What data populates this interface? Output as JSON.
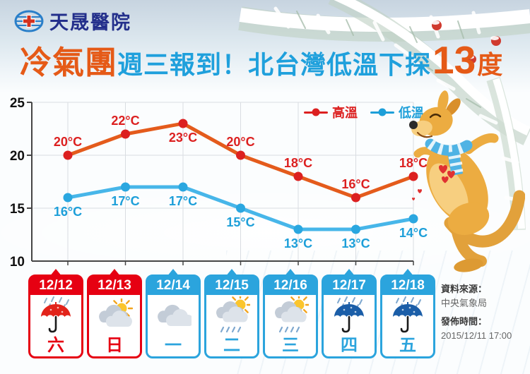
{
  "logo": {
    "name": "天晟醫院",
    "icon": "globe-cross-logo",
    "color": "#232F8B"
  },
  "headline": {
    "part1": "冷氣團",
    "part2": "週三報到！北台灣低溫下探",
    "big_number": "13",
    "part3": "度",
    "accent_color": "#E55A17",
    "blue_color": "#1FA0DC"
  },
  "legend": [
    {
      "label": "高溫",
      "color": "#DC2020"
    },
    {
      "label": "低溫",
      "color": "#1D9FD9"
    }
  ],
  "chart_data": {
    "type": "line",
    "categories": [
      "12/12",
      "12/13",
      "12/14",
      "12/15",
      "12/16",
      "12/17",
      "12/18"
    ],
    "series": [
      {
        "name": "高溫",
        "values": [
          20,
          22,
          23,
          20,
          18,
          16,
          18
        ],
        "line_color": "#E45B1C",
        "point_color": "#DC2020",
        "label_color": "#DC2020",
        "label_pos": [
          "above",
          "above",
          "below",
          "above",
          "above",
          "above",
          "above"
        ]
      },
      {
        "name": "低溫",
        "values": [
          16,
          17,
          17,
          15,
          13,
          13,
          14
        ],
        "line_color": "#47B6E9",
        "point_color": "#2AA7E0",
        "label_color": "#1D9FD9",
        "label_pos": [
          "below",
          "below",
          "below",
          "below",
          "below",
          "below",
          "below"
        ]
      }
    ],
    "unit": "°C",
    "ylim": [
      10,
      25
    ],
    "yticks": [
      10,
      15,
      20,
      25
    ],
    "grid": true,
    "legend_position": "top-right",
    "xlabel": "",
    "ylabel": ""
  },
  "days": [
    {
      "date": "12/12",
      "weekday": "六",
      "theme": "red",
      "icon": "umbrella-rain-red"
    },
    {
      "date": "12/13",
      "weekday": "日",
      "theme": "red",
      "icon": "sun-clouds"
    },
    {
      "date": "12/14",
      "weekday": "一",
      "theme": "blue",
      "icon": "cloudy"
    },
    {
      "date": "12/15",
      "weekday": "二",
      "theme": "blue",
      "icon": "sun-clouds-rain"
    },
    {
      "date": "12/16",
      "weekday": "三",
      "theme": "blue",
      "icon": "sun-clouds-rain"
    },
    {
      "date": "12/17",
      "weekday": "四",
      "theme": "blue",
      "icon": "umbrella-rain-blue"
    },
    {
      "date": "12/18",
      "weekday": "五",
      "theme": "blue",
      "icon": "umbrella-rain-blue"
    }
  ],
  "source": {
    "label1": "資料來源：",
    "value1": "中央氣象局",
    "label2": "發佈時間：",
    "value2": "2015/12/11 17:00"
  },
  "mascot": "kangaroo-with-scarf",
  "colors": {
    "card_red": "#E60012",
    "card_blue": "#2BA4DD",
    "axis": "#454545",
    "grid": "#d9dde2"
  }
}
